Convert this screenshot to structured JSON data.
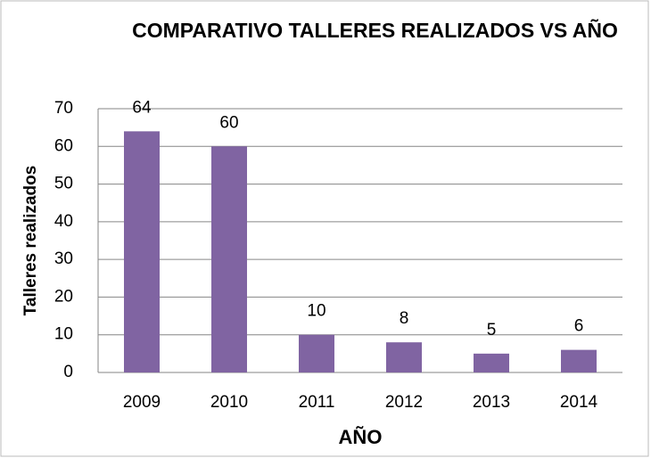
{
  "chart_data": {
    "type": "bar",
    "title": "COMPARATIVO TALLERES REALIZADOS VS AÑO",
    "categories": [
      "2009",
      "2010",
      "2011",
      "2012",
      "2013",
      "2014"
    ],
    "values": [
      64,
      60,
      10,
      8,
      5,
      6
    ],
    "color": "#8064a2",
    "ylim": [
      0,
      70
    ],
    "yticks": [
      0,
      10,
      20,
      30,
      40,
      50,
      60,
      70
    ],
    "grid": true,
    "ylabel": "Talleres realizados",
    "xlabel": "AÑO"
  }
}
